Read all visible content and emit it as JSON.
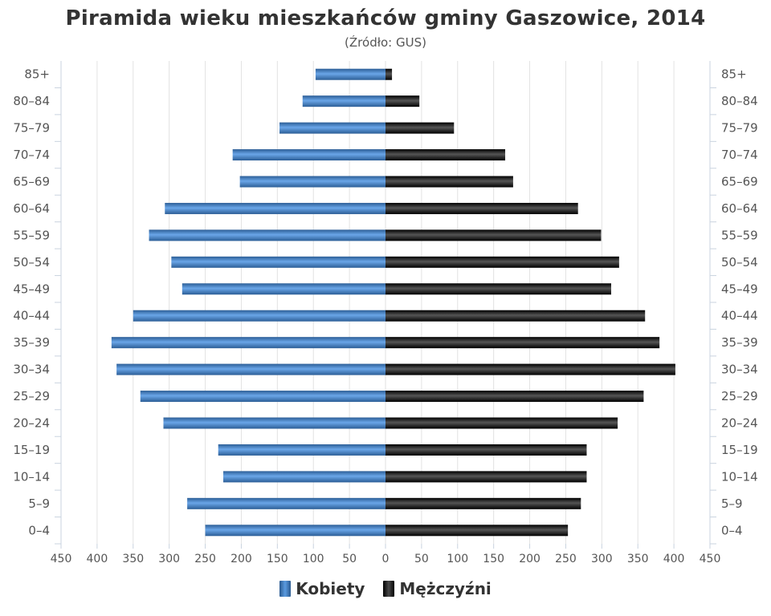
{
  "chart_data": {
    "type": "bar",
    "title": "Piramida wieku mieszkańców gminy Gaszowice, 2014",
    "subtitle": "(Źródło: GUS)",
    "categories": [
      "0–4",
      "5–9",
      "10–14",
      "15–19",
      "20–24",
      "25–29",
      "30–34",
      "35–39",
      "40–44",
      "45–49",
      "50–54",
      "55–59",
      "60–64",
      "65–69",
      "70–74",
      "75–79",
      "80–84",
      "85+"
    ],
    "series": [
      {
        "name": "Kobiety",
        "side": "left",
        "color": "#4a86c8",
        "values": [
          250,
          275,
          225,
          232,
          308,
          340,
          373,
          380,
          350,
          282,
          297,
          328,
          306,
          202,
          212,
          147,
          115,
          97
        ]
      },
      {
        "name": "Mężczyźni",
        "side": "right",
        "color": "#1a1a1a",
        "values": [
          253,
          271,
          279,
          279,
          322,
          358,
          402,
          380,
          360,
          313,
          324,
          299,
          267,
          177,
          166,
          95,
          47,
          9
        ]
      }
    ],
    "x_ticks": [
      "450",
      "400",
      "350",
      "300",
      "250",
      "200",
      "150",
      "100",
      "50",
      "0",
      "50",
      "100",
      "150",
      "200",
      "250",
      "300",
      "350",
      "400",
      "450"
    ],
    "xlim": [
      -450,
      450
    ],
    "grid": true,
    "legend": "bottom-center"
  }
}
